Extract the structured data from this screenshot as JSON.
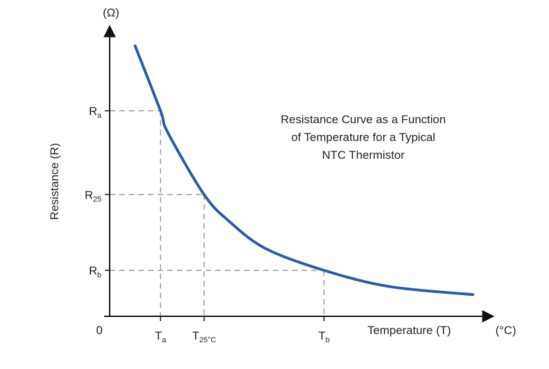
{
  "chart_data": {
    "type": "line",
    "title": "",
    "annotation": {
      "lines": [
        "Resistance Curve as a Function",
        "of Temperature for a Typical",
        "NTC Thermistor"
      ]
    },
    "xlabel": "Temperature (T)",
    "ylabel": "Resistance (R)",
    "x_unit": "(°C)",
    "y_unit": "(Ω)",
    "origin_label": "0",
    "x_ticks": [
      {
        "main": "T",
        "sub": "a"
      },
      {
        "main": "T",
        "sub": "25°C"
      },
      {
        "main": "T",
        "sub": "b"
      }
    ],
    "y_ticks": [
      {
        "main": "R",
        "sub": "a"
      },
      {
        "main": "R",
        "sub": "25"
      },
      {
        "main": "R",
        "sub": "b"
      }
    ],
    "reference_points": [
      {
        "x": 0.14,
        "y": 0.76
      },
      {
        "x": 0.26,
        "y": 0.45
      },
      {
        "x": 0.59,
        "y": 0.17
      }
    ],
    "series": [
      {
        "x": [
          0.07,
          0.14,
          0.16,
          0.26,
          0.33,
          0.43,
          0.59,
          0.77,
          1.0
        ],
        "y": [
          1.0,
          0.76,
          0.68,
          0.45,
          0.35,
          0.25,
          0.17,
          0.11,
          0.08
        ]
      }
    ],
    "xlim": [
      0,
      1
    ],
    "ylim": [
      0,
      1
    ],
    "grid": false,
    "line_color": "#2b5ba8",
    "guide_color": "#9a9a9a",
    "axis_color": "#111111"
  }
}
